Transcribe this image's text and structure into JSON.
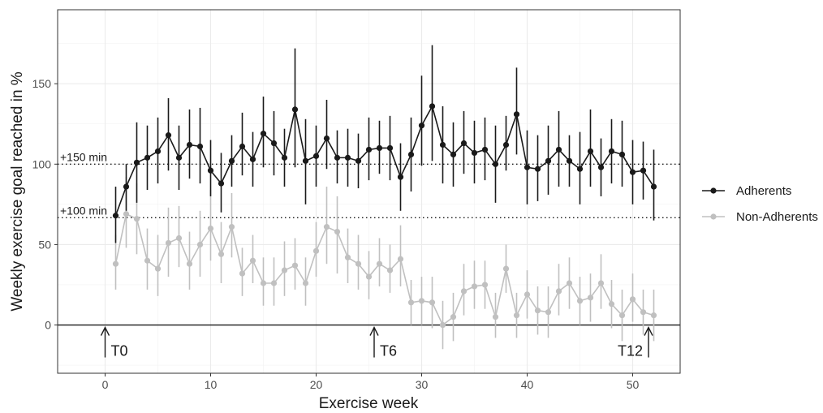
{
  "chart_data": {
    "type": "line",
    "xlabel": "Exercise week",
    "ylabel": "Weekly exercise goal reached in %",
    "xlim": [
      -4.5,
      54.5
    ],
    "ylim": [
      -30,
      196
    ],
    "x_ticks": [
      0,
      10,
      20,
      30,
      40,
      50
    ],
    "y_ticks": [
      0,
      50,
      100,
      150
    ],
    "grid": true,
    "legend_position": "right",
    "reference_lines": [
      {
        "label": "+150 min",
        "y": 100,
        "style": "dotted"
      },
      {
        "label": "+100 min",
        "y": 66.7,
        "style": "dotted"
      }
    ],
    "zero_line": {
      "y": 0
    },
    "timepoints": [
      {
        "label": "T0",
        "x": 0
      },
      {
        "label": "T6",
        "x": 25.5
      },
      {
        "label": "T12",
        "x": 51.5
      }
    ],
    "series": [
      {
        "name": "Adherents",
        "color": "#1a1a1a",
        "x": [
          1,
          2,
          3,
          4,
          5,
          6,
          7,
          8,
          9,
          10,
          11,
          12,
          13,
          14,
          15,
          16,
          17,
          18,
          19,
          20,
          21,
          22,
          23,
          24,
          25,
          26,
          27,
          28,
          29,
          30,
          31,
          32,
          33,
          34,
          35,
          36,
          37,
          38,
          39,
          40,
          41,
          42,
          43,
          44,
          45,
          46,
          47,
          48,
          49,
          50,
          51,
          52
        ],
        "y": [
          68,
          86,
          101,
          104,
          108,
          118,
          104,
          112,
          111,
          96,
          88,
          102,
          111,
          103,
          119,
          113,
          104,
          134,
          102,
          105,
          116,
          104,
          104,
          102,
          109,
          110,
          110,
          92,
          106,
          124,
          136,
          112,
          106,
          113,
          107,
          109,
          100,
          112,
          131,
          98,
          97,
          102,
          109,
          102,
          97,
          108,
          98,
          108,
          106,
          95,
          96,
          86
        ],
        "err_low": [
          51,
          71,
          76,
          84,
          88,
          96,
          84,
          91,
          88,
          80,
          70,
          86,
          93,
          86,
          98,
          93,
          86,
          98,
          75,
          86,
          97,
          88,
          86,
          85,
          90,
          94,
          90,
          71,
          83,
          99,
          102,
          88,
          86,
          94,
          88,
          90,
          76,
          96,
          106,
          75,
          77,
          81,
          86,
          86,
          75,
          86,
          80,
          88,
          86,
          75,
          78,
          65
        ],
        "err_high": [
          86,
          100,
          126,
          124,
          129,
          141,
          124,
          134,
          135,
          115,
          107,
          118,
          132,
          120,
          142,
          133,
          122,
          172,
          128,
          124,
          140,
          121,
          122,
          119,
          129,
          127,
          130,
          113,
          129,
          155,
          174,
          136,
          126,
          133,
          127,
          129,
          124,
          130,
          160,
          121,
          118,
          124,
          133,
          118,
          120,
          134,
          116,
          128,
          127,
          115,
          114,
          109
        ]
      },
      {
        "name": "Non-Adherents",
        "color": "#c0c0c0",
        "x": [
          1,
          2,
          3,
          4,
          5,
          6,
          7,
          8,
          9,
          10,
          11,
          12,
          13,
          14,
          15,
          16,
          17,
          18,
          19,
          20,
          21,
          22,
          23,
          24,
          25,
          26,
          27,
          28,
          29,
          30,
          31,
          32,
          33,
          34,
          35,
          36,
          37,
          38,
          39,
          40,
          41,
          42,
          43,
          44,
          45,
          46,
          47,
          48,
          49,
          50,
          51,
          52
        ],
        "y": [
          38,
          69,
          66,
          40,
          35,
          51,
          54,
          38,
          50,
          60,
          44,
          61,
          32,
          40,
          26,
          26,
          34,
          37,
          26,
          46,
          61,
          58,
          42,
          38,
          30,
          38,
          34,
          41,
          14,
          15,
          14,
          0,
          5,
          21,
          24,
          25,
          5,
          35,
          6,
          19,
          9,
          8,
          21,
          26,
          15,
          17,
          26,
          13,
          6,
          16,
          8,
          6
        ],
        "err_low": [
          22,
          48,
          44,
          22,
          18,
          30,
          36,
          22,
          30,
          40,
          26,
          42,
          18,
          26,
          12,
          12,
          18,
          22,
          12,
          30,
          38,
          32,
          26,
          22,
          16,
          24,
          20,
          24,
          0,
          0,
          -2,
          -15,
          -10,
          6,
          10,
          10,
          -8,
          20,
          -8,
          4,
          -6,
          -8,
          6,
          10,
          0,
          2,
          10,
          -2,
          -10,
          2,
          -6,
          -10
        ],
        "err_high": [
          56,
          92,
          88,
          60,
          56,
          73,
          74,
          58,
          71,
          84,
          64,
          82,
          48,
          56,
          42,
          42,
          52,
          54,
          42,
          64,
          86,
          80,
          60,
          56,
          46,
          54,
          50,
          62,
          28,
          30,
          30,
          15,
          20,
          38,
          40,
          40,
          20,
          50,
          20,
          34,
          24,
          24,
          38,
          42,
          30,
          32,
          44,
          28,
          22,
          32,
          22,
          22
        ]
      }
    ]
  }
}
